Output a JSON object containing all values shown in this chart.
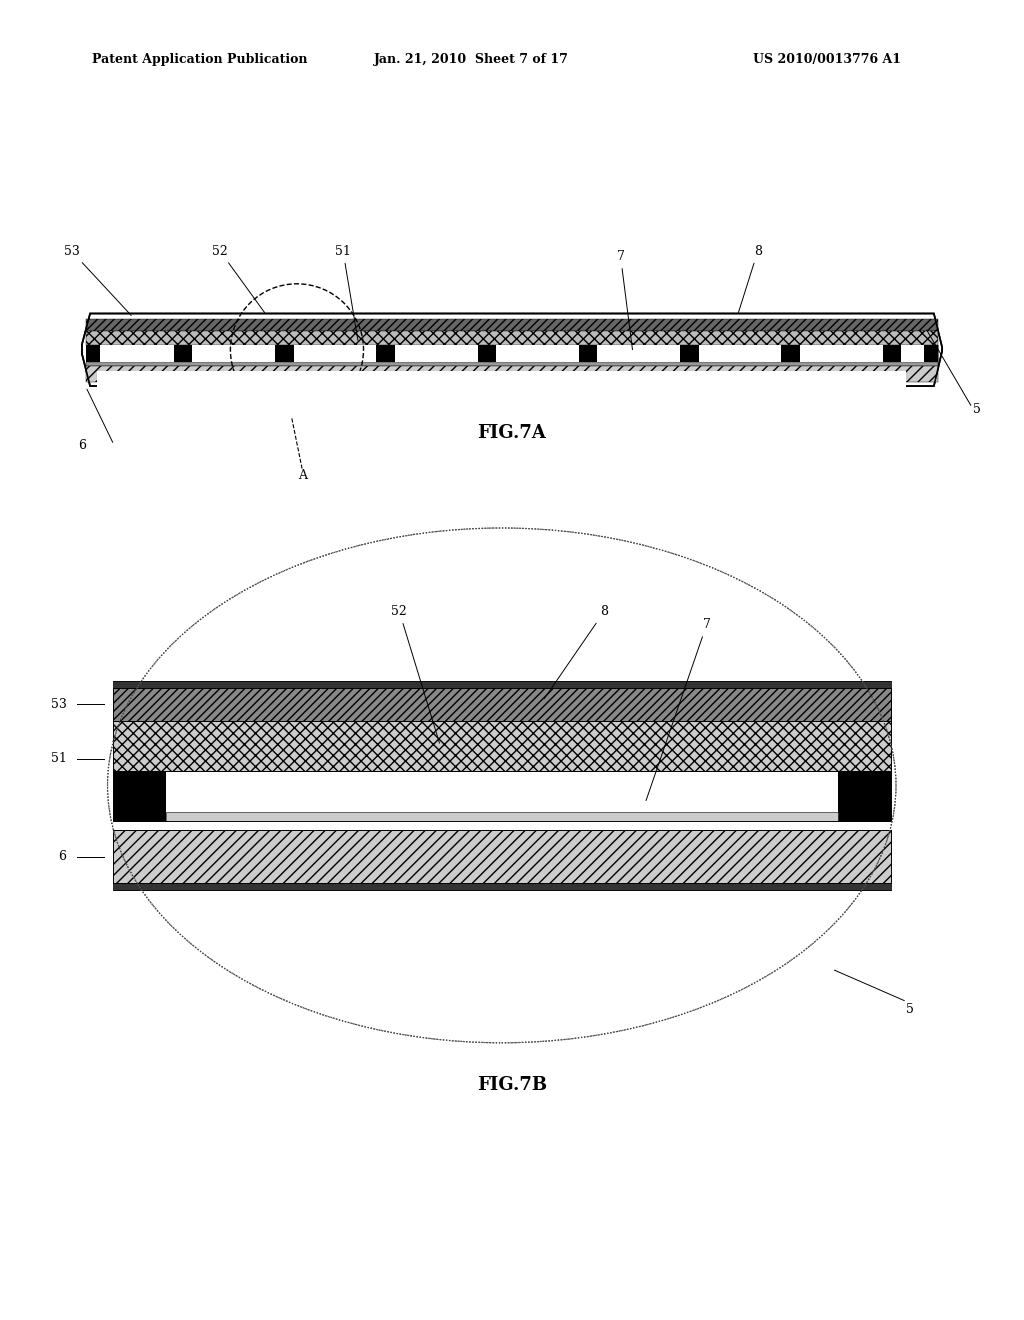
{
  "bg_color": "#ffffff",
  "header_left": "Patent Application Publication",
  "header_center": "Jan. 21, 2010  Sheet 7 of 17",
  "header_right": "US 2010/0013776 A1",
  "fig7a_label": "FIG.7A",
  "fig7b_label": "FIG.7B"
}
